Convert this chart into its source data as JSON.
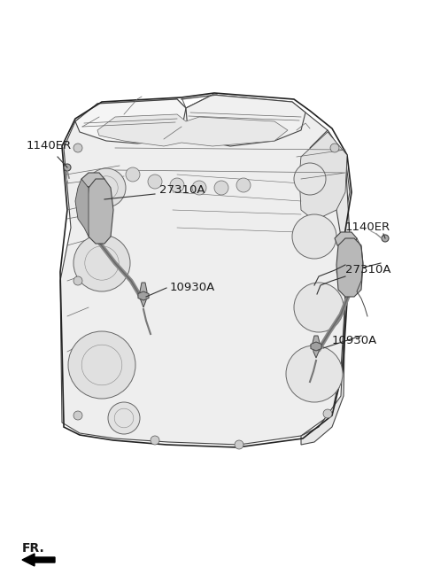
{
  "bg_color": "#ffffff",
  "line_color": "#333333",
  "fill_color": "#f0f0f0",
  "dark_fill": "#d8d8d8",
  "text_color": "#1a1a1a",
  "coil_fill": "#b0b0b0",
  "coil_dark": "#888888",
  "labels": {
    "left_bolt": "1140ER",
    "left_coil": "27310A",
    "left_plug": "10930A",
    "right_bolt": "1140ER",
    "right_coil": "27310A",
    "right_plug": "10930A",
    "fr": "FR."
  },
  "figsize": [
    4.8,
    6.57
  ],
  "dpi": 100
}
